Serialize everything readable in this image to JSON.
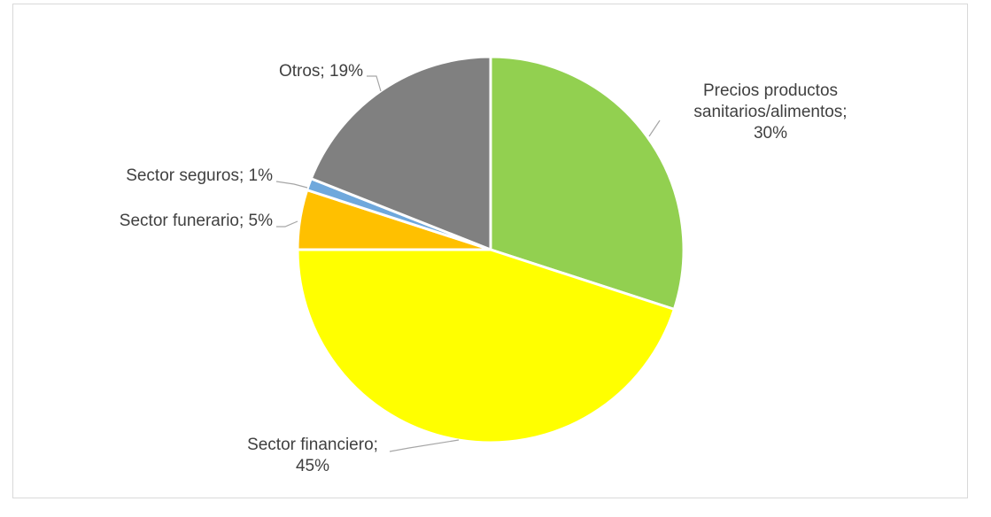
{
  "chart_data": {
    "type": "pie",
    "slices": [
      {
        "label": "Precios productos sanitarios/alimentos",
        "label_lines": [
          "Precios productos",
          "sanitarios/alimentos;",
          "30%"
        ],
        "value": 30,
        "color": "#92d050"
      },
      {
        "label": "Sector financiero",
        "label_lines": [
          "Sector financiero;",
          "45%"
        ],
        "value": 45,
        "color": "#ffff00"
      },
      {
        "label": "Sector funerario",
        "label_lines": [
          "Sector funerario; 5%"
        ],
        "value": 5,
        "color": "#ffc000"
      },
      {
        "label": "Sector seguros",
        "label_lines": [
          "Sector seguros; 1%"
        ],
        "value": 1,
        "color": "#6fa8dc"
      },
      {
        "label": "Otros",
        "label_lines": [
          "Otros; 19%"
        ],
        "value": 19,
        "color": "#808080"
      }
    ],
    "start_angle_deg": 0,
    "direction": "clockwise",
    "legend": "none"
  }
}
